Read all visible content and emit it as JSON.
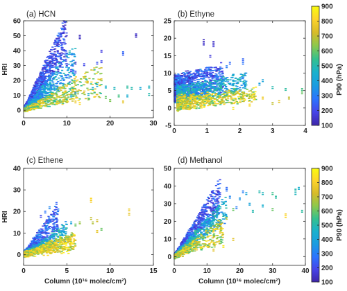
{
  "figure": {
    "colorbar_label": "P90 (hPa)",
    "colorbar_range": [
      100,
      900
    ],
    "colorbar_ticks": [
      "900",
      "800",
      "700",
      "600",
      "500",
      "400",
      "300",
      "200",
      "100"
    ],
    "colormap": "parula",
    "colormap_stops": [
      "#3e26a8",
      "#4744e8",
      "#2c74fe",
      "#1a9ce1",
      "#1ab1ce",
      "#34c08f",
      "#8bc94d",
      "#d6bb29",
      "#fdd32c",
      "#f9fb0e"
    ]
  },
  "chart_data": [
    {
      "type": "scatter",
      "title": "(a) HCN",
      "xlabel": "",
      "ylabel": "HRI",
      "xlim": [
        0,
        30
      ],
      "ylim": [
        -5,
        60
      ],
      "xticks": [
        0,
        10,
        20,
        30
      ],
      "yticks": [
        0,
        10,
        20,
        30,
        40,
        50,
        60
      ],
      "xtick_labels": [
        "0",
        "10",
        "20",
        "30"
      ],
      "ytick_labels": [
        "0",
        "10",
        "20",
        "30",
        "40",
        "50",
        "60"
      ],
      "color_variable": "P90 (hPa)",
      "points": [
        [
          13,
          50,
          120
        ],
        [
          13,
          49,
          140
        ],
        [
          26,
          51,
          150
        ],
        [
          26,
          50,
          130
        ],
        [
          23,
          39,
          260
        ],
        [
          23,
          38,
          240
        ],
        [
          18,
          40,
          180
        ],
        [
          18,
          33,
          200
        ],
        [
          17,
          32,
          220
        ],
        [
          9.8,
          34,
          200
        ],
        [
          10,
          31,
          180
        ],
        [
          12,
          32,
          160
        ],
        [
          8.5,
          30,
          160
        ],
        [
          8,
          27,
          150
        ],
        [
          14,
          31,
          200
        ],
        [
          12,
          26,
          210
        ],
        [
          11,
          27,
          190
        ],
        [
          16,
          15,
          450
        ],
        [
          17,
          17,
          430
        ],
        [
          19,
          16,
          460
        ],
        [
          21,
          15,
          480
        ],
        [
          24,
          16,
          520
        ],
        [
          25,
          15,
          500
        ],
        [
          27,
          15,
          420
        ],
        [
          29,
          16,
          480
        ],
        [
          29,
          11,
          500
        ],
        [
          22,
          10,
          560
        ],
        [
          19,
          9,
          600
        ],
        [
          23,
          6,
          760
        ],
        [
          12,
          12,
          380
        ],
        [
          11,
          10,
          450
        ],
        [
          15,
          11,
          440
        ],
        [
          20,
          7,
          620
        ],
        [
          24,
          10,
          440
        ],
        [
          15,
          8,
          650
        ],
        [
          13,
          5,
          820
        ],
        [
          12,
          6,
          780
        ],
        [
          9,
          5,
          800
        ]
      ],
      "clusters": [
        {
          "desc": "upper blue fan",
          "x": [
            0.3,
            10
          ],
          "y_slope": [
            3.5,
            6.5
          ],
          "pressure": [
            120,
            300
          ],
          "count": 900
        },
        {
          "desc": "mid cyan band",
          "x": [
            0.2,
            12
          ],
          "y_slope": [
            1.8,
            3.8
          ],
          "pressure": [
            250,
            500
          ],
          "count": 700
        },
        {
          "desc": "lower green-yellow band",
          "x": [
            0.2,
            18
          ],
          "y_slope": [
            0.5,
            1.8
          ],
          "pressure": [
            500,
            850
          ],
          "count": 700
        }
      ]
    },
    {
      "type": "scatter",
      "title": "(b) Ethyne",
      "xlabel": "",
      "ylabel": "",
      "xlim": [
        0,
        4
      ],
      "ylim": [
        -5,
        25
      ],
      "xticks": [
        0,
        1,
        2,
        3,
        4
      ],
      "yticks": [
        -5,
        0,
        5,
        10,
        15,
        20,
        25
      ],
      "xtick_labels": [
        "0",
        "1",
        "2",
        "3",
        "4"
      ],
      "ytick_labels": [
        "-5",
        "0",
        "5",
        "10",
        "15",
        "20",
        "25"
      ],
      "color_variable": "P90 (hPa)",
      "points": [
        [
          0.9,
          19.5,
          130
        ],
        [
          0.9,
          18.5,
          150
        ],
        [
          1.2,
          19,
          140
        ],
        [
          1.2,
          18,
          160
        ],
        [
          1.1,
          15,
          170
        ],
        [
          2.1,
          14,
          250
        ],
        [
          2.1,
          13,
          280
        ],
        [
          1.7,
          13,
          260
        ],
        [
          1.6,
          12,
          300
        ],
        [
          2.7,
          8,
          400
        ],
        [
          2.6,
          7,
          380
        ],
        [
          3.0,
          6,
          500
        ],
        [
          3.4,
          5.5,
          520
        ],
        [
          3.9,
          5.5,
          560
        ],
        [
          3.9,
          4.5,
          600
        ],
        [
          3.5,
          3,
          700
        ],
        [
          3.2,
          2,
          760
        ],
        [
          2.7,
          3,
          780
        ],
        [
          3.0,
          1.5,
          700
        ],
        [
          2.3,
          1,
          820
        ],
        [
          1.8,
          0,
          850
        ]
      ],
      "clusters": [
        {
          "desc": "main blue cloud",
          "x": [
            0.02,
            1.5
          ],
          "y_center": [
            1.5,
            9
          ],
          "pressure": [
            130,
            350
          ],
          "count": 1100
        },
        {
          "desc": "cyan transitional cloud",
          "x": [
            0.1,
            2.2
          ],
          "y_center": [
            1,
            6
          ],
          "pressure": [
            300,
            550
          ],
          "count": 700
        },
        {
          "desc": "green-yellow lower band",
          "x": [
            0.1,
            2.5
          ],
          "y_center": [
            -0.5,
            3
          ],
          "pressure": [
            550,
            880
          ],
          "count": 700
        }
      ]
    },
    {
      "type": "scatter",
      "title": "(c) Ethene",
      "xlabel": "Column (10¹⁶ molec/cm²)",
      "ylabel": "HRI",
      "xlim": [
        0,
        15
      ],
      "ylim": [
        -5,
        40
      ],
      "xticks": [
        0,
        5,
        10,
        15
      ],
      "yticks": [
        0,
        10,
        20,
        30,
        40
      ],
      "xtick_labels": [
        "0",
        "5",
        "10",
        "15"
      ],
      "ytick_labels": [
        "0",
        "10",
        "20",
        "30",
        "40"
      ],
      "color_variable": "P90 (hPa)",
      "points": [
        [
          7.8,
          26,
          820
        ],
        [
          7.8,
          25,
          800
        ],
        [
          12.2,
          21,
          780
        ],
        [
          12.2,
          19,
          760
        ],
        [
          7.8,
          17,
          700
        ],
        [
          8.0,
          15,
          680
        ],
        [
          8.5,
          16,
          720
        ],
        [
          6.5,
          15,
          650
        ],
        [
          6.0,
          14,
          600
        ],
        [
          9.0,
          12,
          600
        ],
        [
          8.5,
          11,
          760
        ],
        [
          4.0,
          21,
          300
        ],
        [
          3.8,
          24,
          250
        ],
        [
          2.5,
          20,
          280
        ],
        [
          3.0,
          22,
          320
        ],
        [
          5.5,
          15,
          400
        ],
        [
          2.0,
          18,
          200
        ]
      ],
      "clusters": [
        {
          "desc": "blue upper fan",
          "x": [
            0.1,
            4
          ],
          "y_slope": [
            2.5,
            6
          ],
          "pressure": [
            150,
            350
          ],
          "count": 600
        },
        {
          "desc": "cyan mid",
          "x": [
            0.1,
            5
          ],
          "y_slope": [
            1.3,
            3
          ],
          "pressure": [
            300,
            550
          ],
          "count": 500
        },
        {
          "desc": "yellow dense band",
          "x": [
            0.1,
            6
          ],
          "y_slope": [
            0.3,
            1.8
          ],
          "pressure": [
            600,
            880
          ],
          "count": 900
        }
      ]
    },
    {
      "type": "scatter",
      "title": "(d) Methanol",
      "xlabel": "Column (10¹⁶ molec/cm²)",
      "ylabel": "",
      "xlim": [
        0,
        40
      ],
      "ylim": [
        -5,
        50
      ],
      "xticks": [
        0,
        10,
        20,
        30,
        40
      ],
      "yticks": [
        0,
        10,
        20,
        30,
        40,
        50
      ],
      "xtick_labels": [
        "0",
        "10",
        "20",
        "30",
        "40"
      ],
      "ytick_labels": [
        "0",
        "10",
        "20",
        "30",
        "40",
        "50"
      ],
      "color_variable": "P90 (hPa)",
      "points": [
        [
          16,
          39,
          250
        ],
        [
          16,
          38,
          280
        ],
        [
          21,
          37,
          300
        ],
        [
          22,
          36,
          400
        ],
        [
          26,
          37,
          500
        ],
        [
          27,
          36,
          480
        ],
        [
          30,
          36,
          550
        ],
        [
          31,
          34,
          520
        ],
        [
          37,
          38,
          500
        ],
        [
          37,
          36,
          480
        ],
        [
          38,
          39,
          450
        ],
        [
          39,
          26,
          520
        ],
        [
          34,
          24,
          800
        ],
        [
          34,
          23,
          820
        ],
        [
          30,
          27,
          600
        ],
        [
          27,
          29,
          450
        ],
        [
          24,
          26,
          500
        ],
        [
          23,
          30,
          400
        ],
        [
          20,
          33,
          350
        ],
        [
          19,
          28,
          300
        ],
        [
          17,
          34,
          320
        ],
        [
          14,
          36,
          200
        ],
        [
          18,
          27,
          600
        ],
        [
          16,
          22,
          700
        ],
        [
          14,
          14,
          800
        ],
        [
          15,
          6,
          850
        ],
        [
          12,
          4,
          750
        ],
        [
          18,
          10,
          750
        ]
      ],
      "clusters": [
        {
          "desc": "blue upper fan",
          "x": [
            0.2,
            14
          ],
          "y_slope": [
            1.8,
            3.2
          ],
          "pressure": [
            130,
            320
          ],
          "count": 900
        },
        {
          "desc": "cyan mid",
          "x": [
            0.2,
            16
          ],
          "y_slope": [
            1.2,
            2.2
          ],
          "pressure": [
            300,
            550
          ],
          "count": 700
        },
        {
          "desc": "green-yellow lower",
          "x": [
            0.2,
            15
          ],
          "y_slope": [
            0.5,
            1.5
          ],
          "pressure": [
            550,
            870
          ],
          "count": 600
        }
      ]
    }
  ]
}
